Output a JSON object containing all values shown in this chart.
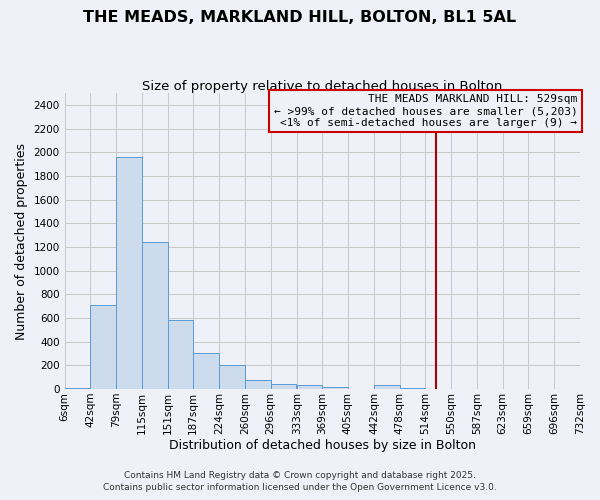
{
  "title": "THE MEADS, MARKLAND HILL, BOLTON, BL1 5AL",
  "subtitle": "Size of property relative to detached houses in Bolton",
  "xlabel": "Distribution of detached houses by size in Bolton",
  "ylabel": "Number of detached properties",
  "bar_values": [
    10,
    710,
    1960,
    1240,
    580,
    305,
    200,
    75,
    40,
    30,
    15,
    0,
    35,
    10,
    0,
    0,
    0,
    0,
    0,
    0
  ],
  "bin_edges": [
    6,
    42,
    79,
    115,
    151,
    187,
    224,
    260,
    296,
    333,
    369,
    405,
    442,
    478,
    514,
    550,
    587,
    623,
    659,
    696,
    732
  ],
  "tick_labels": [
    "6sqm",
    "42sqm",
    "79sqm",
    "115sqm",
    "151sqm",
    "187sqm",
    "224sqm",
    "260sqm",
    "296sqm",
    "333sqm",
    "369sqm",
    "405sqm",
    "442sqm",
    "478sqm",
    "514sqm",
    "550sqm",
    "587sqm",
    "623sqm",
    "659sqm",
    "696sqm",
    "732sqm"
  ],
  "bar_facecolor": "#ccdced",
  "bar_edgecolor": "#5b9bd5",
  "grid_color": "#c8c8c8",
  "background_color": "#eef2f8",
  "vline_x": 529,
  "vline_color": "#aa0000",
  "annotation_title": "THE MEADS MARKLAND HILL: 529sqm",
  "annotation_line1": "← >99% of detached houses are smaller (5,203)",
  "annotation_line2": "<1% of semi-detached houses are larger (9) →",
  "annotation_box_edgecolor": "#cc0000",
  "footnote1": "Contains HM Land Registry data © Crown copyright and database right 2025.",
  "footnote2": "Contains public sector information licensed under the Open Government Licence v3.0.",
  "ylim": [
    0,
    2500
  ],
  "yticks": [
    0,
    200,
    400,
    600,
    800,
    1000,
    1200,
    1400,
    1600,
    1800,
    2000,
    2200,
    2400
  ],
  "title_fontsize": 11.5,
  "subtitle_fontsize": 9.5,
  "axis_label_fontsize": 9,
  "tick_fontsize": 7.5,
  "annotation_fontsize": 8,
  "footnote_fontsize": 6.5
}
